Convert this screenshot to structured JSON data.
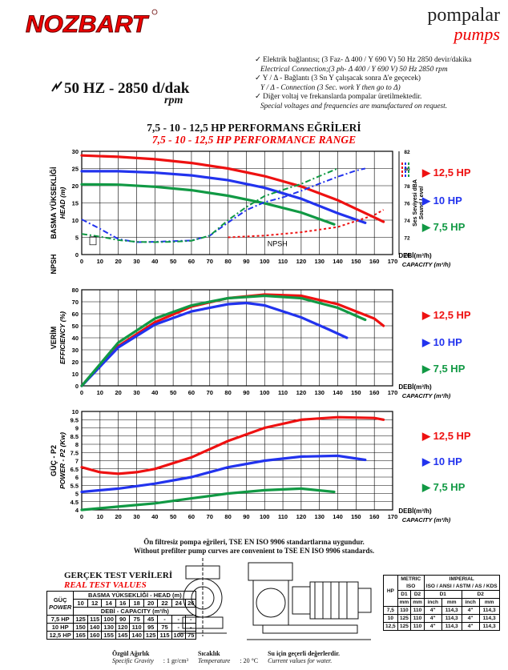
{
  "brand": {
    "logo": "NOZBART",
    "top_right_1": "pompalar",
    "top_right_2": "pumps"
  },
  "header": {
    "frequency": "50 HZ - 2850 d/dak",
    "rpm": "rpm"
  },
  "notes": [
    "Elektrik bağlantısı; (3 Faz- Δ 400 / Y 690 V) 50 Hz 2850 devir/dakika",
    "Electrical Connection;(3 ph- Δ 400 / Y 690 V) 50 Hz 2850 rpm",
    "Y / Δ - Bağlantı (3 Sn Y çalışacak sonra Δ'e geçecek)",
    "Y / Δ - Connection (3 Sec. work Y then go to Δ)",
    "Diğer voltaj ve frekanslarda pompalar üretilmektedir.",
    "Special voltages and frequencies are manufactured on request."
  ],
  "titles": {
    "tr": "7,5 - 10 - 12,5 HP PERFORMANS EĞRİLERİ",
    "en": "7,5 - 10 - 12,5 HP PERFORMANCE RANGE"
  },
  "colors": {
    "p125": "#ee1111",
    "p10": "#2233ee",
    "p75": "#119944",
    "grid": "#000000"
  },
  "legend": [
    "12,5 HP",
    "10 HP",
    "7,5 HP"
  ],
  "chart_data": [
    {
      "type": "line",
      "ylabel_tr": "BASMA YÜKSEKLİĞİ",
      "ylabel_en": "HEAD (m)",
      "ylabel2_tr": "Ses Seviyesi dBA",
      "ylabel2_en": "Sound Level",
      "xlabel_tr": "DEBİ(m³/h)",
      "xlabel_en": "CAPACITY (m³/h)",
      "npsh_label": "NPSH",
      "npsh_axis": "NPSH",
      "xlim": [
        0,
        170
      ],
      "ylim": [
        0,
        30
      ],
      "y2lim": [
        70,
        82
      ],
      "x_ticks": [
        0,
        10,
        20,
        30,
        40,
        50,
        60,
        70,
        80,
        90,
        100,
        110,
        120,
        130,
        140,
        150,
        160,
        170
      ],
      "y_ticks": [
        0,
        5,
        10,
        15,
        20,
        25,
        30
      ],
      "y2_ticks": [
        70,
        72,
        74,
        76,
        78,
        80,
        82
      ],
      "series": [
        {
          "name": "12,5 HP",
          "color": "#ee1111",
          "x": [
            0,
            20,
            40,
            60,
            80,
            100,
            120,
            140,
            160,
            165
          ],
          "y": [
            28.8,
            28.4,
            27.7,
            26.6,
            25.0,
            22.8,
            19.8,
            15.8,
            10.8,
            9.5
          ]
        },
        {
          "name": "10 HP",
          "color": "#2233ee",
          "x": [
            0,
            20,
            40,
            60,
            80,
            100,
            120,
            140,
            155
          ],
          "y": [
            24.2,
            24.2,
            23.8,
            23.0,
            21.6,
            19.4,
            16.2,
            12.0,
            9.2
          ]
        },
        {
          "name": "7,5 HP",
          "color": "#119944",
          "x": [
            0,
            20,
            40,
            60,
            80,
            100,
            120,
            138
          ],
          "y": [
            20.4,
            20.3,
            19.7,
            18.7,
            17.1,
            14.9,
            12.2,
            8.8
          ]
        }
      ],
      "npsh": [
        {
          "x": [
            0,
            10,
            20,
            30,
            40,
            50,
            60,
            70,
            80,
            90,
            100,
            110,
            120,
            130,
            140,
            150,
            155
          ],
          "y": [
            10.2,
            7.5,
            4.5,
            3.6,
            3.7,
            3.9,
            4.1,
            5.5,
            9.3,
            12.9,
            15.2,
            16.6,
            18.5,
            20.6,
            22.6,
            24.4,
            25.0
          ],
          "color": "#2233ee"
        },
        {
          "x": [
            0,
            10,
            20,
            30,
            40,
            50,
            60,
            70,
            80,
            90,
            100,
            110,
            120,
            130,
            140
          ],
          "y": [
            6.0,
            5.2,
            4.2,
            3.7,
            3.6,
            3.7,
            4.0,
            5.5,
            10.0,
            13.8,
            17.0,
            18.8,
            20.5,
            22.8,
            25.0
          ],
          "color": "#119944"
        }
      ],
      "sound": {
        "x": [
          80,
          100,
          120,
          140,
          160,
          165
        ],
        "y": [
          72.0,
          72.2,
          72.6,
          73.2,
          74.6,
          75.2
        ],
        "color": "#ee1111"
      }
    },
    {
      "type": "line",
      "ylabel_tr": "VERİM",
      "ylabel_en": "EFFICIENCY (%)",
      "xlabel_tr": "DEBİ(m³/h)",
      "xlabel_en": "CAPACITY (m³/h)",
      "xlim": [
        0,
        170
      ],
      "ylim": [
        0,
        80
      ],
      "x_ticks": [
        0,
        10,
        20,
        30,
        40,
        50,
        60,
        70,
        80,
        90,
        100,
        110,
        120,
        130,
        140,
        150,
        160,
        170
      ],
      "y_ticks": [
        0,
        10,
        20,
        30,
        40,
        50,
        60,
        70,
        80
      ],
      "series": [
        {
          "name": "12,5 HP",
          "color": "#ee1111",
          "x": [
            0,
            20,
            40,
            60,
            80,
            100,
            120,
            140,
            160,
            165
          ],
          "y": [
            0,
            33,
            53,
            66,
            73,
            76,
            75,
            68,
            56,
            50
          ]
        },
        {
          "name": "10 HP",
          "color": "#2233ee",
          "x": [
            0,
            20,
            40,
            60,
            80,
            90,
            100,
            120,
            135,
            145
          ],
          "y": [
            0,
            32,
            51,
            62,
            68,
            69,
            67,
            57,
            47,
            40
          ]
        },
        {
          "name": "7,5 HP",
          "color": "#119944",
          "x": [
            0,
            20,
            40,
            60,
            80,
            100,
            120,
            140,
            155
          ],
          "y": [
            0,
            36,
            56,
            67,
            73,
            75,
            73,
            65,
            55
          ]
        }
      ]
    },
    {
      "type": "line",
      "ylabel_tr": "GÜÇ - P2",
      "ylabel_en": "POWER - P2 (Kw)",
      "xlabel_tr": "DEBİ(m³/h)",
      "xlabel_en": "CAPACITY (m³/h)",
      "xlim": [
        0,
        170
      ],
      "ylim": [
        4,
        10
      ],
      "x_ticks": [
        0,
        10,
        20,
        30,
        40,
        50,
        60,
        70,
        80,
        90,
        100,
        110,
        120,
        130,
        140,
        150,
        160,
        170
      ],
      "y_ticks": [
        4,
        4.5,
        5,
        5.5,
        6,
        6.5,
        7,
        7.5,
        8,
        8.5,
        9,
        9.5,
        10
      ],
      "series": [
        {
          "name": "12,5 HP",
          "color": "#ee1111",
          "x": [
            0,
            10,
            20,
            30,
            40,
            60,
            80,
            100,
            120,
            140,
            160,
            165
          ],
          "y": [
            6.6,
            6.3,
            6.2,
            6.3,
            6.5,
            7.2,
            8.2,
            9.0,
            9.5,
            9.65,
            9.6,
            9.5
          ]
        },
        {
          "name": "10 HP",
          "color": "#2233ee",
          "x": [
            0,
            20,
            40,
            60,
            80,
            100,
            120,
            140,
            155
          ],
          "y": [
            5.1,
            5.3,
            5.6,
            6.0,
            6.6,
            7.0,
            7.25,
            7.3,
            7.05
          ]
        },
        {
          "name": "7,5 HP",
          "color": "#119944",
          "x": [
            0,
            20,
            40,
            60,
            80,
            100,
            120,
            138
          ],
          "y": [
            4.0,
            4.2,
            4.4,
            4.7,
            5.0,
            5.2,
            5.3,
            5.1
          ]
        }
      ]
    }
  ],
  "filter_note": {
    "tr": "Ön filtresiz pompa eğrileri, TSE EN ISO 9906 standartlarına uygundur.",
    "en": "Without prefilter pump curves are convenient to TSE EN ISO 9906 standards."
  },
  "test_table": {
    "title_tr": "GERÇEK TEST VERİLERİ",
    "title_en": "REAL TEST VALUES",
    "corner_tr": "GÜÇ",
    "corner_en": "POWER",
    "head_label": "BASMA YÜKSEKLİĞİ - HEAD (m)",
    "flow_label": "DEBİ - CAPACITY (m³/h)",
    "heads": [
      "10",
      "12",
      "14",
      "16",
      "18",
      "20",
      "22",
      "24",
      "26"
    ],
    "rows": [
      {
        "power": "7,5 HP",
        "values": [
          "125",
          "115",
          "100",
          "90",
          "75",
          "45",
          "-",
          "-",
          "-"
        ]
      },
      {
        "power": "10 HP",
        "values": [
          "150",
          "140",
          "130",
          "120",
          "110",
          "95",
          "75",
          "-",
          "-"
        ]
      },
      {
        "power": "12,5 HP",
        "values": [
          "165",
          "160",
          "155",
          "145",
          "140",
          "125",
          "115",
          "100",
          "75"
        ]
      }
    ]
  },
  "dim_table": {
    "h_metric": "METRIC",
    "h_iso": "ISO",
    "h_imperial": "IMPERIAL",
    "h_imp_sub": "ISO / ANSI / ASTM / AS / KDS",
    "hp": "HP",
    "d1": "D1",
    "d2": "D2",
    "mm": "mm",
    "inch": "inch",
    "rows": [
      {
        "hp": "7,5",
        "m1": "110",
        "m2": "110",
        "i1": "4\"",
        "i1mm": "114,3",
        "i2": "4\"",
        "i2mm": "114,3"
      },
      {
        "hp": "10",
        "m1": "125",
        "m2": "110",
        "i1": "4\"",
        "i1mm": "114,3",
        "i2": "4\"",
        "i2mm": "114,3"
      },
      {
        "hp": "12,5",
        "m1": "125",
        "m2": "110",
        "i1": "4\"",
        "i1mm": "114,3",
        "i2": "4\"",
        "i2mm": "114,3"
      }
    ]
  },
  "footer": {
    "gravity_tr": "Özgül Ağırlık",
    "gravity_en": "Specific Gravity",
    "gravity_val": ": 1 gr/cm³",
    "temp_tr": "Sıcaklık",
    "temp_en": "Temperature",
    "temp_val": ": 20 °C",
    "water_tr": "Su için geçerli değerlerdir.",
    "water_en": "Current values for water."
  }
}
